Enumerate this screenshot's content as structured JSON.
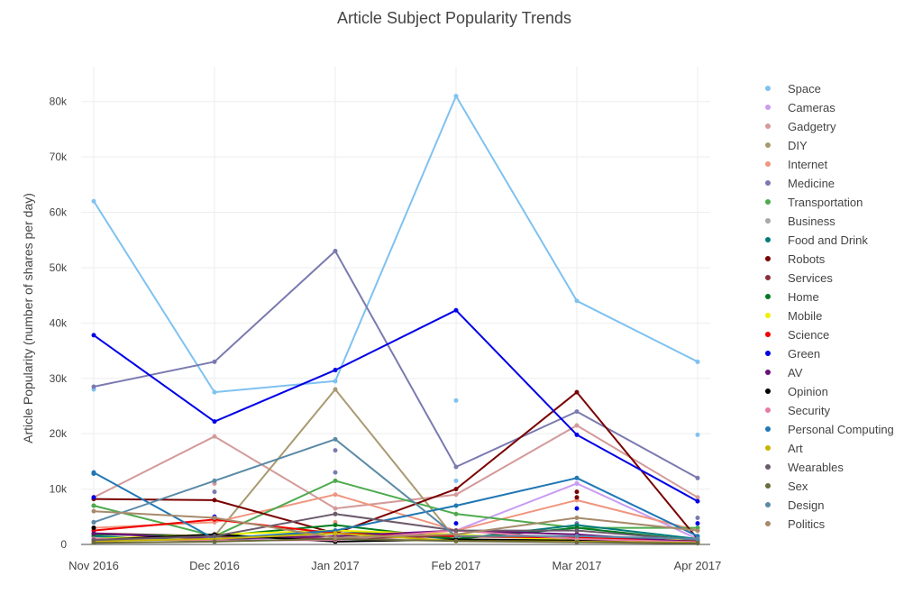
{
  "chart_data": {
    "type": "line",
    "title": "Article Subject Popularity Trends",
    "xlabel": "",
    "ylabel": "Article Popularity (number of shares per day)",
    "categories": [
      "Nov 2016",
      "Dec 2016",
      "Jan 2017",
      "Feb 2017",
      "Mar 2017",
      "Apr 2017"
    ],
    "ylim": [
      0,
      85000
    ],
    "yticks": [
      0,
      10000,
      20000,
      30000,
      40000,
      50000,
      60000,
      70000,
      80000
    ],
    "ytick_labels": [
      "0",
      "10k",
      "20k",
      "30k",
      "40k",
      "50k",
      "60k",
      "70k",
      "80k"
    ],
    "grid": true,
    "legend_position": "right",
    "series": [
      {
        "name": "Space",
        "color": "#7fc2f0",
        "values": [
          62000,
          27500,
          29500,
          81000,
          44000,
          33000
        ],
        "points": [
          [
            0,
            28000
          ],
          [
            1,
            27500
          ],
          [
            2,
            29500
          ],
          [
            3,
            26000
          ],
          [
            3,
            11500
          ],
          [
            5,
            19800
          ],
          [
            5,
            33000
          ]
        ]
      },
      {
        "name": "Cameras",
        "color": "#c89cf2",
        "values": [
          1200,
          800,
          1500,
          2500,
          11000,
          1000
        ],
        "points": [
          [
            3,
            2500
          ],
          [
            4,
            11000
          ]
        ]
      },
      {
        "name": "Gadgetry",
        "color": "#d49a9a",
        "values": [
          8500,
          19500,
          6500,
          9000,
          21500,
          8500
        ],
        "points": [
          [
            1,
            11000
          ],
          [
            3,
            2000
          ],
          [
            4,
            2000
          ]
        ]
      },
      {
        "name": "DIY",
        "color": "#a89a70",
        "values": [
          500,
          1500,
          28000,
          900,
          800,
          600
        ],
        "points": [
          [
            2,
            5500
          ],
          [
            4,
            3000
          ]
        ]
      },
      {
        "name": "Internet",
        "color": "#f0957e",
        "values": [
          3000,
          4000,
          9000,
          2500,
          8000,
          2500
        ],
        "points": [
          [
            2,
            4000
          ],
          [
            4,
            3500
          ]
        ]
      },
      {
        "name": "Medicine",
        "color": "#7a7ab0",
        "values": [
          28500,
          33000,
          53000,
          14000,
          24000,
          12000
        ],
        "points": [
          [
            1,
            9500
          ],
          [
            2,
            17000
          ],
          [
            2,
            13000
          ],
          [
            4,
            3800
          ],
          [
            5,
            4800
          ]
        ]
      },
      {
        "name": "Transportation",
        "color": "#4daa4d",
        "values": [
          7000,
          1500,
          11500,
          5500,
          3000,
          3000
        ],
        "points": [
          [
            0,
            7000
          ],
          [
            4,
            3000
          ]
        ]
      },
      {
        "name": "Business",
        "color": "#a8a8a8",
        "values": [
          1000,
          1200,
          2000,
          1500,
          1000,
          800
        ],
        "points": []
      },
      {
        "name": "Food and Drink",
        "color": "#007a7a",
        "values": [
          1500,
          500,
          2500,
          1000,
          3500,
          1000
        ],
        "points": []
      },
      {
        "name": "Robots",
        "color": "#7a0000",
        "values": [
          8200,
          8000,
          2000,
          10000,
          27500,
          1000
        ],
        "points": [
          [
            4,
            9500
          ],
          [
            4,
            8500
          ]
        ]
      },
      {
        "name": "Services",
        "color": "#8b2e3e",
        "values": [
          2000,
          1500,
          1000,
          1500,
          1200,
          700
        ],
        "points": []
      },
      {
        "name": "Home",
        "color": "#007a20",
        "values": [
          1800,
          1500,
          3500,
          1000,
          3000,
          700
        ],
        "points": []
      },
      {
        "name": "Mobile",
        "color": "#f0f000",
        "values": [
          1000,
          1800,
          2500,
          1800,
          700,
          1000
        ],
        "points": []
      },
      {
        "name": "Science",
        "color": "#f00000",
        "values": [
          2500,
          4500,
          2000,
          1500,
          1200,
          500
        ],
        "points": []
      },
      {
        "name": "Green",
        "color": "#0000e6",
        "values": [
          37800,
          22200,
          31500,
          42300,
          19800,
          7800
        ],
        "points": [
          [
            0,
            12800
          ],
          [
            0,
            8500
          ],
          [
            1,
            5000
          ],
          [
            2,
            1000
          ],
          [
            3,
            3800
          ],
          [
            4,
            6500
          ],
          [
            5,
            3800
          ]
        ]
      },
      {
        "name": "AV",
        "color": "#6b0f7a",
        "values": [
          2000,
          1000,
          1500,
          2500,
          1800,
          400
        ],
        "points": []
      },
      {
        "name": "Opinion",
        "color": "#000000",
        "values": [
          800,
          1800,
          500,
          900,
          700,
          300
        ],
        "points": [
          [
            0,
            3000
          ],
          [
            1,
            1800
          ]
        ]
      },
      {
        "name": "Security",
        "color": "#e67aa6",
        "values": [
          1000,
          700,
          800,
          2500,
          1000,
          400
        ],
        "points": []
      },
      {
        "name": "Personal Computing",
        "color": "#1f77b4",
        "values": [
          13000,
          1000,
          2500,
          7000,
          12000,
          1500
        ],
        "points": [
          [
            0,
            12800
          ]
        ]
      },
      {
        "name": "Art",
        "color": "#c8b400",
        "values": [
          600,
          1000,
          2000,
          600,
          500,
          300
        ],
        "points": []
      },
      {
        "name": "Wearables",
        "color": "#6b5a6b",
        "values": [
          800,
          1500,
          5500,
          2500,
          2500,
          800
        ],
        "points": []
      },
      {
        "name": "Sex",
        "color": "#6b6b3c",
        "values": [
          300,
          500,
          1000,
          600,
          400,
          200
        ],
        "points": []
      },
      {
        "name": "Design",
        "color": "#5a8aa6",
        "values": [
          4000,
          11500,
          19000,
          1500,
          1500,
          1000
        ],
        "points": [
          [
            0,
            4000
          ]
        ]
      },
      {
        "name": "Politics",
        "color": "#a68a6b",
        "values": [
          6000,
          4800,
          1200,
          1800,
          4800,
          2500
        ],
        "points": []
      }
    ]
  }
}
